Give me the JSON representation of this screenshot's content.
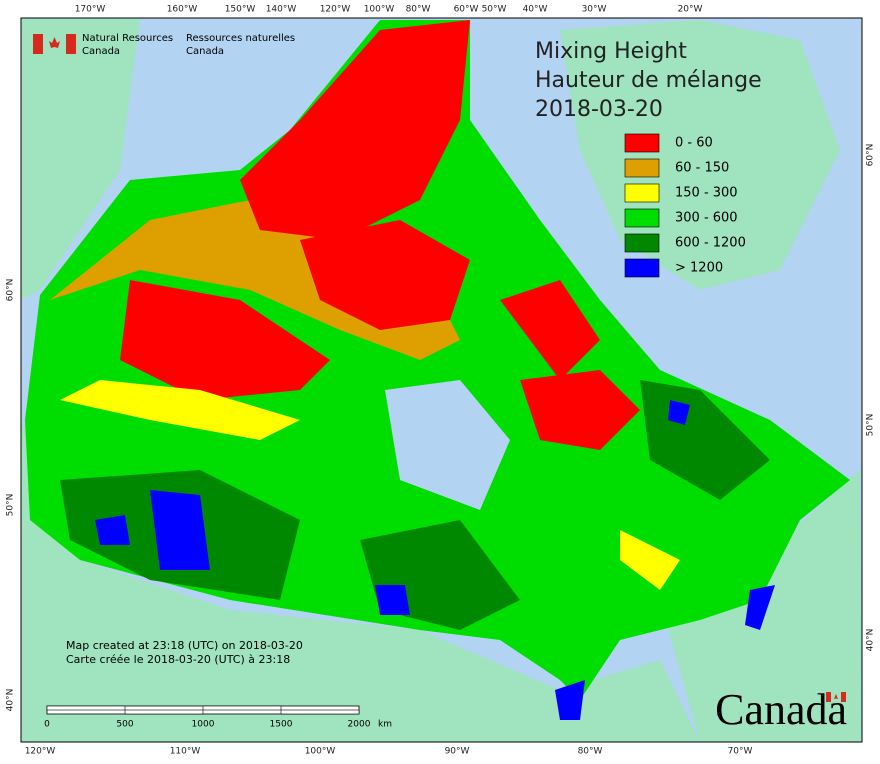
{
  "header": {
    "org_en": [
      "Natural Resources",
      "Canada"
    ],
    "org_fr": [
      "Ressources naturelles",
      "Canada"
    ]
  },
  "title": [
    "Mixing Height",
    "Hauteur de mélange",
    "2018-03-20"
  ],
  "legend": [
    {
      "label": "0 - 60",
      "color": "#ff0000"
    },
    {
      "label": "60 - 150",
      "color": "#dda000"
    },
    {
      "label": "150 - 300",
      "color": "#ffff00"
    },
    {
      "label": "300 - 600",
      "color": "#00dd00"
    },
    {
      "label": "600 - 1200",
      "color": "#008800"
    },
    {
      "label": "> 1200",
      "color": "#0000ff"
    }
  ],
  "top_labels": [
    "170°W",
    "160°W",
    "150°W",
    "140°W",
    "120°W",
    "100°W",
    "80°W",
    "60°W",
    "50°W",
    "40°W",
    "30°W",
    "20°W"
  ],
  "bottom_labels": [
    "120°W",
    "110°W",
    "100°W",
    "90°W",
    "80°W",
    "70°W"
  ],
  "left_labels": [
    "60°N",
    "50°N",
    "40°N"
  ],
  "right_labels": [
    "60°N",
    "50°N",
    "40°N"
  ],
  "notes": [
    "Map created at 23:18 (UTC) on 2018-03-20",
    "Carte créée le 2018-03-20 (UTC) à 23:18"
  ],
  "scale": {
    "labels": [
      "0",
      "500",
      "1000",
      "1500",
      "2000"
    ],
    "unit": "km"
  },
  "wordmark": "Canada"
}
